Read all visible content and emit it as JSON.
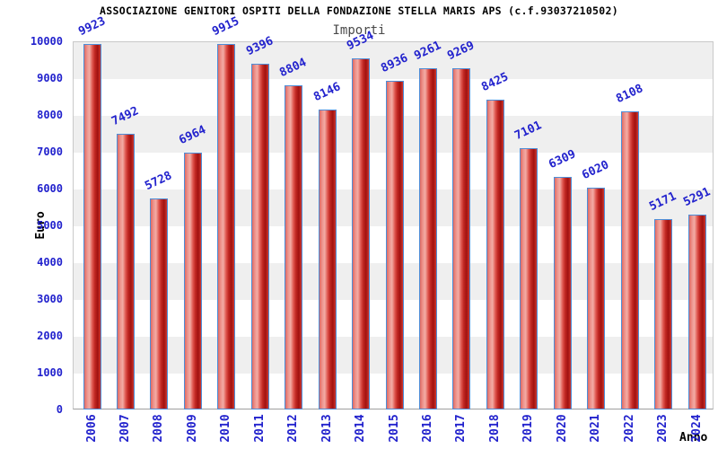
{
  "chart_data": {
    "type": "bar",
    "title": "ASSOCIAZIONE GENITORI OSPITI DELLA FONDAZIONE STELLA MARIS APS (c.f.93037210502)",
    "subtitle": "Importi",
    "xlabel": "Anno",
    "ylabel": "Euro",
    "categories": [
      "2006",
      "2007",
      "2008",
      "2009",
      "2010",
      "2011",
      "2012",
      "2013",
      "2014",
      "2015",
      "2016",
      "2017",
      "2018",
      "2019",
      "2020",
      "2021",
      "2022",
      "2023",
      "2024"
    ],
    "values": [
      9923,
      7492,
      5728,
      6964,
      9915,
      9396,
      8804,
      8146,
      9534,
      8936,
      9261,
      9269,
      8425,
      7101,
      6309,
      6020,
      8108,
      5171,
      5291
    ],
    "ylim": [
      0,
      10000
    ],
    "ytick_step": 1000,
    "grid": "horizontal-bands-alternating",
    "legend": "none",
    "colors": {
      "bar_fill_dark": "#a11210",
      "bar_fill_main": "#cc2b28",
      "bar_fill_light": "#f3aba4",
      "bar_border": "#4e8ed8",
      "tick_label_blue": "#2222cd",
      "value_label_blue": "#2222cd",
      "band_gray": "#efefef",
      "band_white": "#ffffff",
      "subtitle_gray": "#4a4a4a",
      "title_black": "#000000"
    }
  }
}
